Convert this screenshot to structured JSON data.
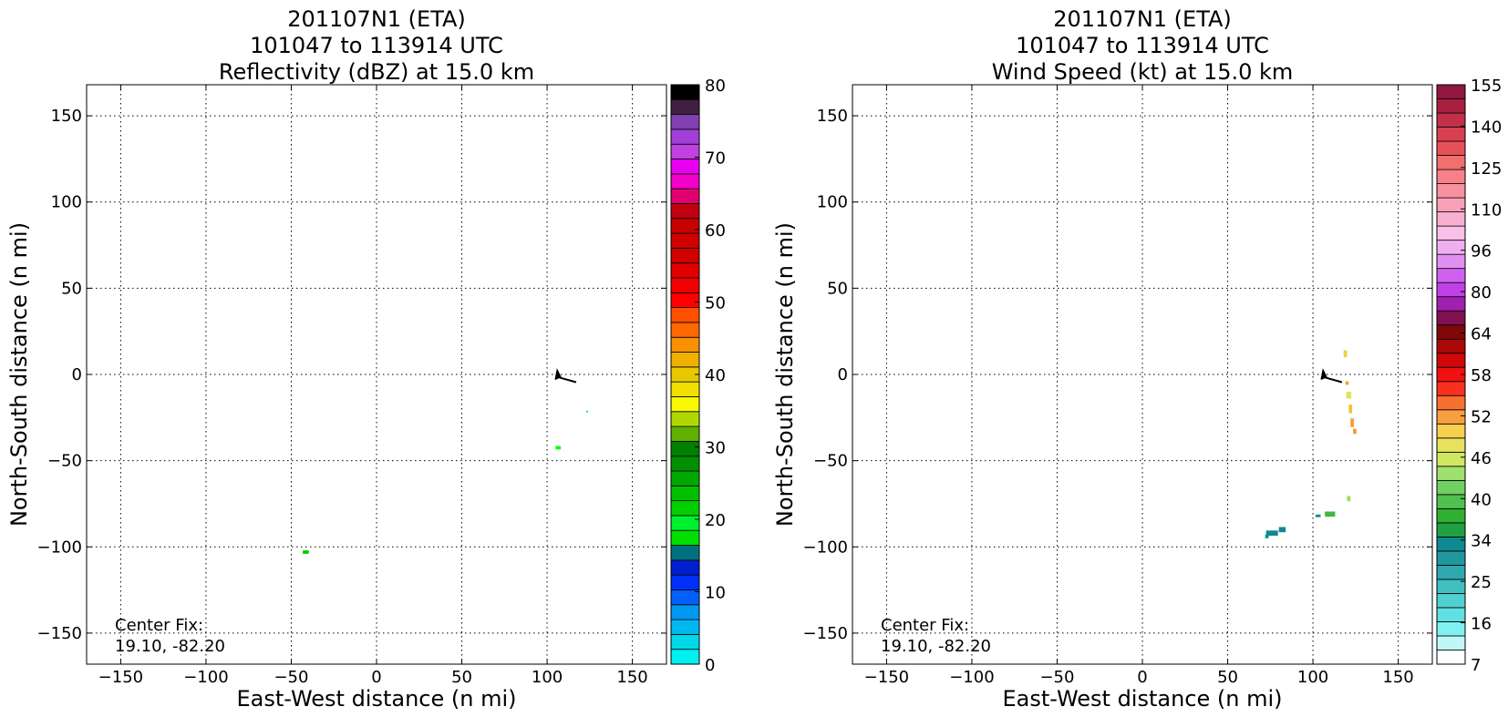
{
  "chart_data": [
    {
      "type": "scatter",
      "title": [
        "201107N1 (ETA)",
        "101047 to 113914 UTC",
        "Reflectivity (dBZ) at 15.0 km"
      ],
      "xlabel": "East-West distance (n mi)",
      "ylabel": "North-South distance (n mi)",
      "xlim": [
        -170,
        170
      ],
      "ylim": [
        -168,
        168
      ],
      "xticks": [
        -150,
        -100,
        -50,
        0,
        50,
        100,
        150
      ],
      "yticks": [
        -150,
        -100,
        -50,
        0,
        50,
        100,
        150
      ],
      "xtick_labels": [
        "−150",
        "−100",
        "−50",
        "0",
        "50",
        "100",
        "150"
      ],
      "ytick_labels": [
        "−150",
        "−100",
        "−50",
        "0",
        "50",
        "100",
        "150"
      ],
      "grid": true,
      "annotation": [
        "Center Fix:",
        "19.10, -82.20"
      ],
      "flight_track": [
        [
          105,
          -3
        ],
        [
          106,
          2
        ],
        [
          108,
          -2
        ],
        [
          117,
          -4.5
        ]
      ],
      "points": [
        {
          "x": -41.5,
          "y": -103,
          "w": 3.5,
          "h": 2,
          "color": "#00cc00"
        },
        {
          "x": 106.5,
          "y": -42.5,
          "w": 3,
          "h": 2,
          "color": "#00ff00"
        },
        {
          "x": 123.5,
          "y": -21.5,
          "w": 1,
          "h": 1,
          "color": "#20d0e8"
        }
      ],
      "colorbar": {
        "label_ticks": [
          "0",
          "10",
          "20",
          "30",
          "40",
          "50",
          "60",
          "70",
          "80"
        ],
        "colors": [
          "#00f0f0",
          "#00d8e8",
          "#00b8f0",
          "#0098f0",
          "#0060f8",
          "#0030f8",
          "#0020d0",
          "#007080",
          "#00e000",
          "#00f030",
          "#00d000",
          "#00c000",
          "#00a800",
          "#009000",
          "#008000",
          "#60b000",
          "#b0d800",
          "#f8f800",
          "#f0e000",
          "#e8c800",
          "#f0b000",
          "#f89000",
          "#ff6800",
          "#ff5000",
          "#ff0000",
          "#f00000",
          "#e00000",
          "#d00000",
          "#d00000",
          "#c80000",
          "#c00010",
          "#e00070",
          "#f000c8",
          "#e800f0",
          "#c040e0",
          "#a040d8",
          "#8040b0",
          "#402040",
          "#000000"
        ]
      }
    },
    {
      "type": "scatter",
      "title": [
        "201107N1 (ETA)",
        "101047 to 113914 UTC",
        "Wind Speed (kt) at 15.0 km"
      ],
      "xlabel": "East-West distance (n mi)",
      "ylabel": "North-South distance (n mi)",
      "xlim": [
        -170,
        170
      ],
      "ylim": [
        -168,
        168
      ],
      "xticks": [
        -150,
        -100,
        -50,
        0,
        50,
        100,
        150
      ],
      "yticks": [
        -150,
        -100,
        -50,
        0,
        50,
        100,
        150
      ],
      "xtick_labels": [
        "−150",
        "−100",
        "−50",
        "0",
        "50",
        "100",
        "150"
      ],
      "ytick_labels": [
        "−150",
        "−100",
        "−50",
        "0",
        "50",
        "100",
        "150"
      ],
      "grid": true,
      "annotation": [
        "Center Fix:",
        "19.10, -82.20"
      ],
      "flight_track": [
        [
          105,
          -3
        ],
        [
          106,
          2
        ],
        [
          108,
          -2
        ],
        [
          117,
          -4.5
        ]
      ],
      "points": [
        {
          "x": 119,
          "y": 12,
          "w": 2,
          "h": 4,
          "color": "#f0d040"
        },
        {
          "x": 120,
          "y": -5,
          "w": 2,
          "h": 2,
          "color": "#f0a030"
        },
        {
          "x": 121,
          "y": -12,
          "w": 3,
          "h": 4,
          "color": "#e8e060"
        },
        {
          "x": 122,
          "y": -20,
          "w": 2,
          "h": 5,
          "color": "#f0c040"
        },
        {
          "x": 123,
          "y": -28,
          "w": 2,
          "h": 5,
          "color": "#f0a030"
        },
        {
          "x": 124.5,
          "y": -33,
          "w": 2,
          "h": 3,
          "color": "#f0a030"
        },
        {
          "x": 121,
          "y": -72,
          "w": 2,
          "h": 3,
          "color": "#a0d860"
        },
        {
          "x": 110,
          "y": -81,
          "w": 6,
          "h": 3,
          "color": "#40b840"
        },
        {
          "x": 103,
          "y": -82,
          "w": 3,
          "h": 1.5,
          "color": "#108890"
        },
        {
          "x": 76,
          "y": -92,
          "w": 7,
          "h": 3,
          "color": "#108890"
        },
        {
          "x": 82,
          "y": -90,
          "w": 4,
          "h": 3,
          "color": "#108890"
        },
        {
          "x": 73,
          "y": -94,
          "w": 2,
          "h": 2,
          "color": "#108890"
        }
      ],
      "colorbar": {
        "label_ticks": [
          "7",
          "16",
          "25",
          "34",
          "40",
          "46",
          "52",
          "58",
          "64",
          "80",
          "96",
          "110",
          "125",
          "140",
          "155"
        ],
        "colors": [
          "#ffffff",
          "#c0f8f8",
          "#80f0f0",
          "#60e0e0",
          "#50d0d0",
          "#40c0c0",
          "#30a8b0",
          "#2098a0",
          "#108890",
          "#20a040",
          "#30b030",
          "#50c050",
          "#70d060",
          "#a0e070",
          "#d0e860",
          "#e8e060",
          "#f8d050",
          "#f8a040",
          "#f87030",
          "#f83020",
          "#f01010",
          "#d00808",
          "#a80808",
          "#800808",
          "#801050",
          "#a020b0",
          "#c040e8",
          "#d060f0",
          "#e090f0",
          "#f0b0f0",
          "#f8c0e8",
          "#f8b0d0",
          "#f8a0b8",
          "#f890a0",
          "#f88088",
          "#f07070",
          "#e85058",
          "#d84050",
          "#c03048",
          "#a82040",
          "#901840"
        ]
      }
    }
  ]
}
